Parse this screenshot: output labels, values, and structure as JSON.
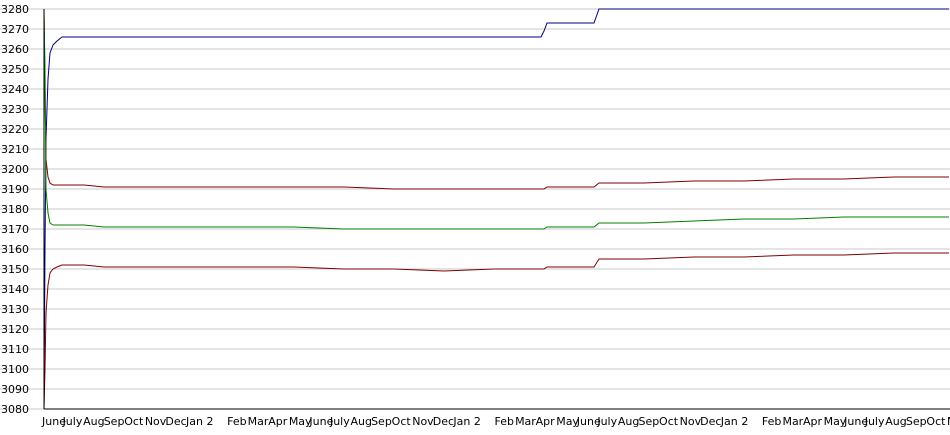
{
  "chart_data": {
    "type": "line",
    "title": "",
    "xlabel": "",
    "ylabel": "",
    "ylim": [
      3080,
      3280
    ],
    "y_ticks": [
      3080,
      3090,
      3100,
      3110,
      3120,
      3130,
      3140,
      3150,
      3160,
      3170,
      3180,
      3190,
      3200,
      3210,
      3220,
      3230,
      3240,
      3250,
      3260,
      3270,
      3280
    ],
    "grid": true,
    "legend": "none",
    "x_ticks": [
      "June",
      "July",
      "Aug",
      "Sep",
      "Oct",
      "Nov",
      "Dec",
      "Jan",
      "2",
      "Feb",
      "Mar",
      "Apr",
      "May",
      "June",
      "July",
      "Aug",
      "Sep",
      "Oct",
      "Nov",
      "Dec",
      "Jan",
      "2",
      "Feb",
      "Mar",
      "Apr",
      "May",
      "June",
      "July",
      "Aug",
      "Sep",
      "Oct",
      "Nov",
      "Dec",
      "Jan",
      "2",
      "Feb",
      "Mar",
      "Apr",
      "May",
      "June",
      "July",
      "Aug",
      "Sep",
      "Oct",
      "No"
    ],
    "x": [
      0,
      1,
      2,
      4,
      6,
      9,
      13,
      18,
      24,
      30,
      40,
      60,
      100,
      150,
      200,
      250,
      300,
      350,
      400,
      450,
      497,
      500,
      503,
      530,
      550,
      555,
      600,
      650,
      700,
      750,
      800,
      850,
      905
    ],
    "series": [
      {
        "color": "#000080",
        "values": [
          3080,
          3160,
          3215,
          3245,
          3258,
          3262,
          3264,
          3266,
          3266,
          3266,
          3266,
          3266,
          3266,
          3266,
          3266,
          3266,
          3266,
          3266,
          3266,
          3266,
          3266,
          3269,
          3273,
          3273,
          3273,
          3280,
          3280,
          3280,
          3280,
          3280,
          3280,
          3280,
          3280
        ]
      },
      {
        "color": "#800000",
        "values": [
          3280,
          3240,
          3205,
          3196,
          3193,
          3192,
          3192,
          3192,
          3192,
          3192,
          3192,
          3191,
          3191,
          3191,
          3191,
          3191,
          3191,
          3190,
          3190,
          3190,
          3190,
          3190,
          3191,
          3191,
          3191,
          3193,
          3193,
          3194,
          3194,
          3195,
          3195,
          3196,
          3196
        ]
      },
      {
        "color": "#008000",
        "values": [
          3278,
          3250,
          3190,
          3178,
          3173,
          3172,
          3172,
          3172,
          3172,
          3172,
          3172,
          3171,
          3171,
          3171,
          3171,
          3171,
          3170,
          3170,
          3170,
          3170,
          3170,
          3170,
          3171,
          3171,
          3171,
          3173,
          3173,
          3174,
          3175,
          3175,
          3176,
          3176,
          3176
        ]
      },
      {
        "color": "#800000",
        "values": [
          3080,
          3100,
          3128,
          3142,
          3148,
          3150,
          3151,
          3152,
          3152,
          3152,
          3152,
          3151,
          3151,
          3151,
          3151,
          3151,
          3150,
          3150,
          3149,
          3150,
          3150,
          3150,
          3151,
          3151,
          3151,
          3155,
          3155,
          3156,
          3156,
          3157,
          3157,
          3158,
          3158
        ]
      }
    ]
  }
}
